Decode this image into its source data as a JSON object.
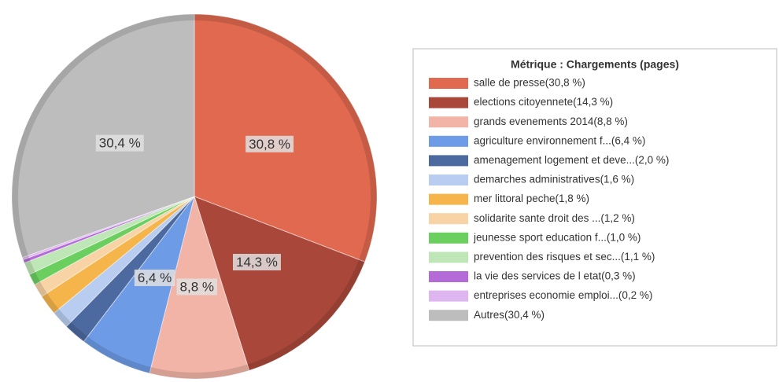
{
  "chart_data": {
    "type": "pie",
    "title": "Métrique :  Chargements (pages)",
    "categories": [
      "salle de presse(30,8 %)",
      "elections  citoyennete(14,3 %)",
      "grands evenements 2014(8,8 %)",
      "agriculture  environnement  f...(6,4 %)",
      "amenagement  logement et deve...(2,0 %)",
      "demarches administratives(1,6 %)",
      "mer  littoral  peche(1,8 %)",
      "solidarite  sante  droit des  ...(1,2 %)",
      "jeunesse  sport  education  f...(1,0 %)",
      "prevention des risques et sec...(1,1 %)",
      "la vie des services de l etat(0,3 %)",
      "entreprises  economie  emploi...(0,2 %)",
      "Autres(30,4 %)"
    ],
    "values": [
      30.8,
      14.3,
      8.8,
      6.4,
      2.0,
      1.6,
      1.8,
      1.2,
      1.0,
      1.1,
      0.3,
      0.2,
      30.4
    ],
    "value_labels": [
      "30,8 %",
      "14,3 %",
      "8,8 %",
      "6,4 %",
      null,
      null,
      null,
      null,
      null,
      null,
      null,
      null,
      "30,4 %"
    ],
    "colors": [
      "#e0694f",
      "#a9483a",
      "#f2b4a7",
      "#6d9be6",
      "#4c6aa0",
      "#b8cdf0",
      "#f5b54a",
      "#f7d3a5",
      "#6bcf5f",
      "#bfe6b6",
      "#b46bd8",
      "#ddb5ef",
      "#bdbdbd"
    ],
    "legend": "right"
  }
}
